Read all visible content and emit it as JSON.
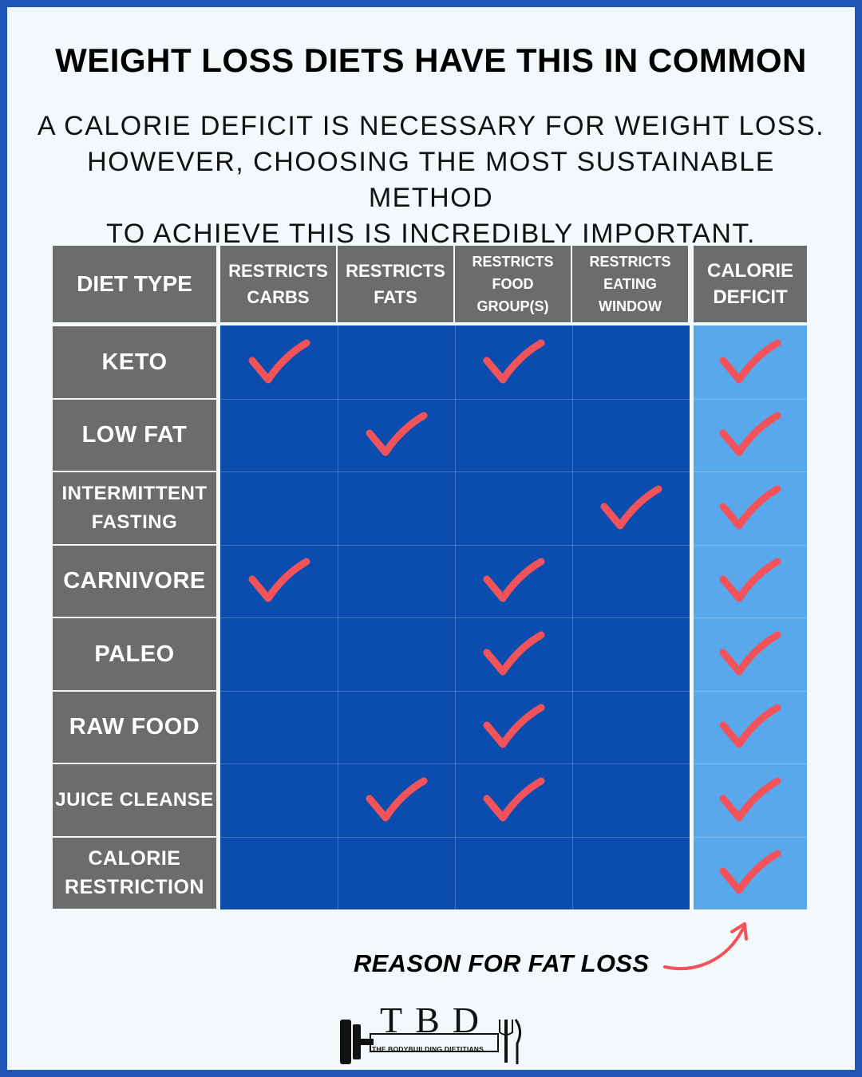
{
  "title": "WEIGHT LOSS DIETS HAVE THIS IN COMMON",
  "subtitle": {
    "line1": "A CALORIE DEFICIT IS NECESSARY FOR WEIGHT LOSS.",
    "line2": "HOWEVER, CHOOSING THE MOST SUSTAINABLE METHOD",
    "line3": "TO ACHIEVE THIS IS INCREDIBLY IMPORTANT."
  },
  "table": {
    "corner_header": "DIET TYPE",
    "columns": [
      {
        "label": [
          "RESTRICTS",
          "CARBS"
        ]
      },
      {
        "label": [
          "RESTRICTS",
          "FATS"
        ]
      },
      {
        "label": [
          "RESTRICTS",
          "FOOD",
          "GROUP(S)"
        ]
      },
      {
        "label": [
          "RESTRICTS",
          "EATING",
          "WINDOW"
        ]
      },
      {
        "label": [
          "CALORIE",
          "DEFICIT"
        ]
      }
    ],
    "rows": [
      {
        "diet": [
          "KETO"
        ],
        "checks": [
          true,
          false,
          true,
          false,
          true
        ]
      },
      {
        "diet": [
          "LOW FAT"
        ],
        "checks": [
          false,
          true,
          false,
          false,
          true
        ]
      },
      {
        "diet": [
          "INTERMITTENT",
          "FASTING"
        ],
        "checks": [
          false,
          false,
          false,
          true,
          true
        ]
      },
      {
        "diet": [
          "CARNIVORE"
        ],
        "checks": [
          true,
          false,
          true,
          false,
          true
        ]
      },
      {
        "diet": [
          "PALEO"
        ],
        "checks": [
          false,
          false,
          true,
          false,
          true
        ]
      },
      {
        "diet": [
          "RAW FOOD"
        ],
        "checks": [
          false,
          false,
          true,
          false,
          true
        ]
      },
      {
        "diet": [
          "JUICE CLEANSE"
        ],
        "checks": [
          false,
          true,
          true,
          false,
          true
        ]
      },
      {
        "diet": [
          "CALORIE",
          "RESTRICTION"
        ],
        "checks": [
          false,
          false,
          false,
          false,
          true
        ]
      }
    ]
  },
  "annotation": "REASON FOR FAT LOSS",
  "logo": {
    "letters": "TBD",
    "tagline": "THE BODYBUILDING DIETITIANS"
  },
  "colors": {
    "border": "#1f55b8",
    "header_gray": "#6c6c6c",
    "cell_blue": "#0a4daf",
    "highlight_blue": "#5aa8ec",
    "check_red": "#f2535b"
  },
  "icons": {
    "check": "check-mark-icon",
    "arrow": "curved-arrow-icon",
    "logo": "barbell-fork-knife-icon"
  }
}
